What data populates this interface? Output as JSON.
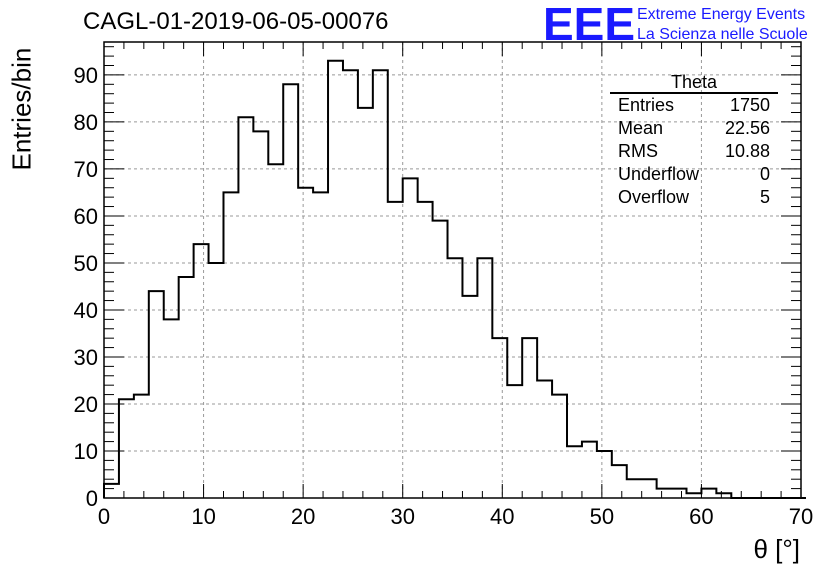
{
  "header": {
    "title": "CAGL-01-2019-06-05-00076",
    "logo_text": "EEE",
    "logo_line1": "Extreme Energy Events",
    "logo_line2": "La Scienza nelle Scuole"
  },
  "stats": {
    "title": "Theta",
    "rows": [
      {
        "label": "Entries",
        "value": "1750"
      },
      {
        "label": "Mean",
        "value": "22.56"
      },
      {
        "label": "RMS",
        "value": "10.88"
      },
      {
        "label": "Underflow",
        "value": "0"
      },
      {
        "label": "Overflow",
        "value": "5"
      }
    ]
  },
  "chart_data": {
    "type": "bar",
    "style": "step-histogram",
    "xlabel": "θ [°]",
    "ylabel": "Entries/bin",
    "xlim": [
      0,
      70
    ],
    "ylim": [
      0,
      97
    ],
    "x_ticks": [
      0,
      10,
      20,
      30,
      40,
      50,
      60,
      70
    ],
    "y_ticks": [
      0,
      10,
      20,
      30,
      40,
      50,
      60,
      70,
      80,
      90
    ],
    "grid": true,
    "bin_width": 1.5,
    "bin_edges_start": 0,
    "values": [
      3,
      21,
      22,
      44,
      38,
      47,
      54,
      50,
      65,
      81,
      78,
      71,
      88,
      66,
      65,
      93,
      91,
      83,
      91,
      63,
      68,
      63,
      59,
      51,
      43,
      51,
      34,
      24,
      34,
      25,
      22,
      11,
      12,
      10,
      7,
      4,
      4,
      2,
      2,
      1,
      2,
      1,
      0,
      0,
      0,
      0,
      0
    ]
  }
}
